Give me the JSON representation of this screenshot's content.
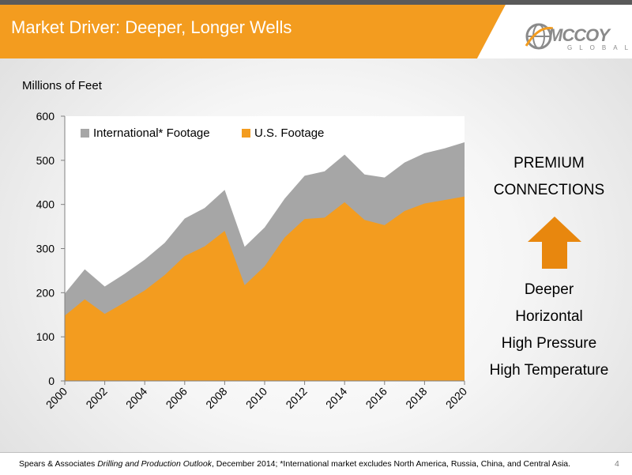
{
  "slide": {
    "title": "Market Driver: Deeper, Longer Wells",
    "page_number": "4",
    "accent_color": "#F39C1F"
  },
  "logo": {
    "name": "MCCOY",
    "tagline": "GLOBAL"
  },
  "chart_data": {
    "type": "area",
    "stacked": true,
    "ylabel": "Millions of Feet",
    "ylim": [
      0,
      600
    ],
    "yticks": [
      0,
      100,
      200,
      300,
      400,
      500,
      600
    ],
    "x": [
      2000,
      2001,
      2002,
      2003,
      2004,
      2005,
      2006,
      2007,
      2008,
      2009,
      2010,
      2011,
      2012,
      2013,
      2014,
      2015,
      2016,
      2017,
      2018,
      2019,
      2020
    ],
    "xtick_labels": [
      "2000",
      "2002",
      "2004",
      "2006",
      "2008",
      "2010",
      "2012",
      "2014",
      "2016",
      "2018",
      "2020"
    ],
    "legend_position": "top-left",
    "series": [
      {
        "name": "International* Footage",
        "color": "#A6A6A6",
        "values": [
          50,
          68,
          62,
          65,
          70,
          73,
          85,
          87,
          93,
          87,
          88,
          88,
          98,
          105,
          108,
          103,
          108,
          110,
          114,
          117,
          123
        ]
      },
      {
        "name": "U.S. Footage",
        "color": "#F39C1F",
        "values": [
          148,
          185,
          152,
          178,
          205,
          240,
          283,
          305,
          340,
          217,
          260,
          325,
          367,
          370,
          405,
          365,
          353,
          385,
          402,
          410,
          418
        ]
      }
    ]
  },
  "sidebar": {
    "headline_lines": [
      "PREMIUM",
      "CONNECTIONS"
    ],
    "arrow_icon": "up-arrow-icon",
    "drivers": [
      "Deeper",
      "Horizontal",
      "High Pressure",
      "High Temperature"
    ]
  },
  "footnote": {
    "source": "Spears & Associates ",
    "publication": "Drilling and Production Outlook",
    "rest": ", December 2014; *International market excludes North America, Russia, China, and Central Asia."
  }
}
